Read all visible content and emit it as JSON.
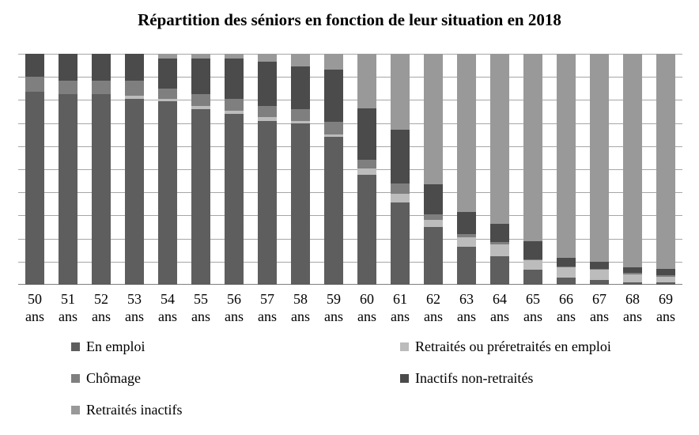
{
  "title": "Répartition des séniors en fonction de leur situation en 2018",
  "colors": {
    "background": "#ffffff",
    "gridline": "#a6a6a6",
    "axis_line": "#7f7f7f",
    "text": "#000000"
  },
  "chart_data": {
    "type": "bar",
    "stacked": true,
    "orientation": "vertical",
    "unit": "percent",
    "title": "Répartition des séniors en fonction de leur situation en 2018",
    "xlabel": "",
    "ylabel": "",
    "ylim": [
      0,
      100
    ],
    "gridline_step": 10,
    "y_axis_labels_visible": false,
    "legend_position": "bottom-two-columns",
    "categories": [
      "50 ans",
      "51 ans",
      "52 ans",
      "53 ans",
      "54 ans",
      "55 ans",
      "56 ans",
      "57 ans",
      "58 ans",
      "59 ans",
      "60 ans",
      "61 ans",
      "62 ans",
      "63 ans",
      "64 ans",
      "65 ans",
      "66 ans",
      "67 ans",
      "68 ans",
      "69 ans"
    ],
    "series": [
      {
        "name": "En emploi",
        "color": "#5e5e5e",
        "values": [
          83.5,
          82.5,
          82.5,
          80.5,
          79.5,
          76,
          74,
          71,
          70,
          64,
          47.5,
          35.5,
          25,
          16.5,
          12.5,
          6.5,
          3,
          2,
          1,
          1
        ]
      },
      {
        "name": "Retraités ou préretraités en emploi",
        "color": "#bcbcbc",
        "values": [
          0,
          0,
          0,
          1.5,
          1,
          1.5,
          1.5,
          1.5,
          1,
          1,
          3,
          4,
          3,
          4,
          5,
          4,
          4.5,
          4.5,
          3.5,
          2.5
        ]
      },
      {
        "name": "Chômage",
        "color": "#7f7f7f",
        "values": [
          6.5,
          6,
          6,
          6.5,
          4.5,
          5,
          5,
          5,
          5,
          5.5,
          3.5,
          4.5,
          2.5,
          1.5,
          1,
          0.5,
          0.5,
          0.5,
          0.5,
          0.5
        ]
      },
      {
        "name": "Inactifs non-retraités",
        "color": "#4b4b4b",
        "values": [
          10,
          11.5,
          11.5,
          11.5,
          13,
          15.5,
          17.5,
          19,
          18.5,
          22.5,
          22.5,
          23,
          13,
          9.5,
          8,
          8,
          3.5,
          3,
          2.5,
          3
        ]
      },
      {
        "name": "Retraités inactifs",
        "color": "#999999",
        "values": [
          0,
          0,
          0,
          0,
          2,
          2,
          2,
          3.5,
          5.5,
          7,
          23.5,
          33,
          56.5,
          68.5,
          73.5,
          81,
          88.5,
          90,
          92.5,
          93
        ]
      }
    ]
  }
}
